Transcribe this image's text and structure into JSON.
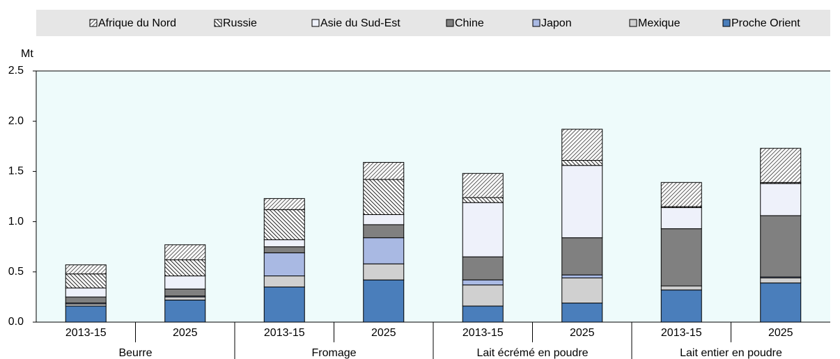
{
  "chart_data": {
    "type": "stacked-bar",
    "y_label": "Mt",
    "categories": [
      "2013-15",
      "2025",
      "2013-15",
      "2025",
      "2013-15",
      "2025",
      "2013-15",
      "2025"
    ],
    "groups": [
      "Beurre",
      "Fromage",
      "Lait écrémé en poudre",
      "Lait entier en poudre"
    ],
    "ylim": [
      0,
      2.5
    ],
    "yticks": [
      {
        "value": 0,
        "label": "0.0"
      },
      {
        "value": 0.5,
        "label": "0.5"
      },
      {
        "value": 1,
        "label": "1.0"
      },
      {
        "value": 1.5,
        "label": "1.5"
      },
      {
        "value": 2,
        "label": "2.0"
      },
      {
        "value": 2.5,
        "label": "2.5"
      }
    ],
    "grid": false,
    "legend": "top",
    "series": [
      {
        "name": "Proche Orient",
        "color": "#4a7ebb",
        "values": [
          0.16,
          0.22,
          0.35,
          0.42,
          0.16,
          0.19,
          0.32,
          0.39
        ]
      },
      {
        "name": "Mexique",
        "color": "#d0d0d0",
        "values": [
          0.02,
          0.03,
          0.11,
          0.16,
          0.21,
          0.25,
          0.04,
          0.05
        ]
      },
      {
        "name": "Japon",
        "color": "#a9b9e3",
        "values": [
          0.01,
          0.01,
          0.23,
          0.26,
          0.05,
          0.03,
          0,
          0.01
        ]
      },
      {
        "name": "Chine",
        "color": "#808080",
        "values": [
          0.06,
          0.07,
          0.06,
          0.13,
          0.23,
          0.37,
          0.57,
          0.61
        ]
      },
      {
        "name": "Asie du Sud-Est",
        "color": "#eef1fa",
        "values": [
          0.09,
          0.13,
          0.07,
          0.1,
          0.54,
          0.72,
          0.21,
          0.32
        ]
      },
      {
        "name": "Russie",
        "color": "#ffffff",
        "pattern": "hatch-back",
        "values": [
          0.14,
          0.16,
          0.3,
          0.35,
          0.05,
          0.05,
          0.01,
          0.01
        ]
      },
      {
        "name": "Afrique du Nord",
        "color": "#ffffff",
        "pattern": "hatch-forward",
        "values": [
          0.09,
          0.15,
          0.11,
          0.17,
          0.24,
          0.31,
          0.24,
          0.34
        ]
      }
    ]
  }
}
